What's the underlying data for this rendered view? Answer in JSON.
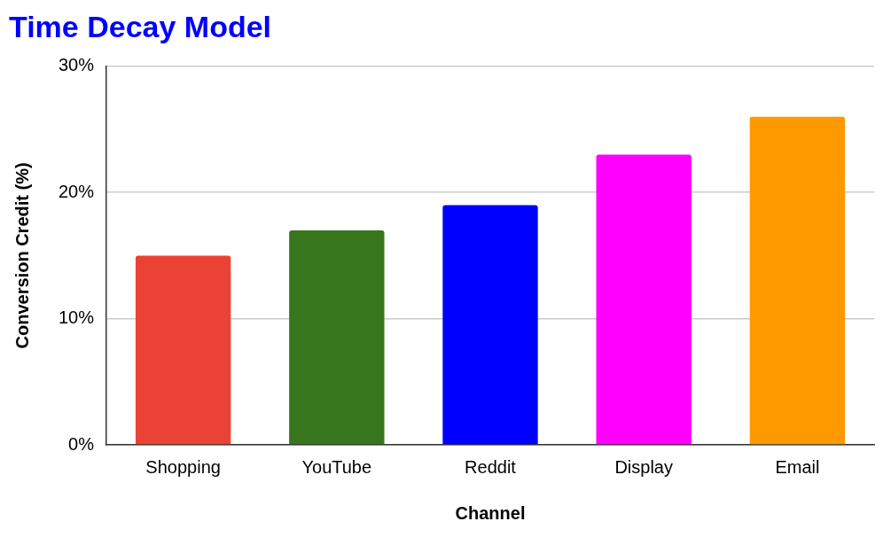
{
  "chart_data": {
    "type": "bar",
    "title": "Time Decay Model",
    "x_label": "Channel",
    "y_label": "Conversion Credit (%)",
    "categories": [
      "Shopping",
      "YouTube",
      "Reddit",
      "Display",
      "Email"
    ],
    "values": [
      15,
      17,
      19,
      23,
      26
    ],
    "colors": [
      "#ea4335",
      "#38761d",
      "#0000ff",
      "#ff00ff",
      "#ff9900"
    ],
    "ylim": [
      0,
      30
    ],
    "yticks": [
      {
        "value": 0,
        "label": "0%"
      },
      {
        "value": 10,
        "label": "10%"
      },
      {
        "value": 20,
        "label": "20%"
      },
      {
        "value": 30,
        "label": "30%"
      }
    ],
    "grid": true
  }
}
